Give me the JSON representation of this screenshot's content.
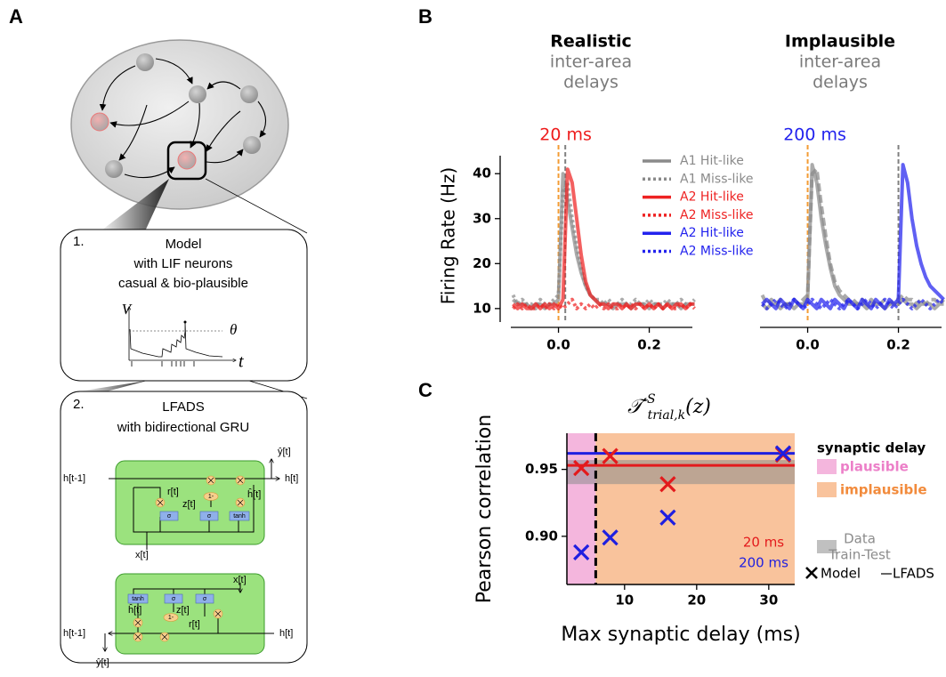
{
  "panel_a": {
    "label": "A",
    "box1": {
      "number": "1.",
      "lines": [
        "Model",
        "with LIF neurons",
        "casual & bio-plausible"
      ],
      "plot": {
        "y_label": "V",
        "threshold": "θ",
        "x_label": "t"
      }
    },
    "box2": {
      "number": "2.",
      "lines": [
        "LFADS",
        "with bidirectional GRU"
      ],
      "gru_forward": {
        "output": "ŷ[t]",
        "h_prev": "h[t-1]",
        "h_next": "h[t]",
        "reset": "r[t]",
        "update": "z[t]",
        "candidate": "ĥ[t]",
        "input": "x[t]",
        "gates": [
          "σ",
          "σ",
          "tanh"
        ],
        "one_minus": "1-"
      },
      "gru_backward": {
        "output": "ŷ[t]",
        "h_prev": "h[t-1]",
        "h_next": "h[t]",
        "reset": "r[t]",
        "update": "z[t]",
        "candidate": "ĥ[t]",
        "input": "x[t]",
        "gates": [
          "tanh",
          "σ",
          "σ"
        ],
        "one_minus": "1-"
      }
    }
  },
  "panel_b": {
    "label": "B"
  },
  "panel_c": {
    "label": "C"
  },
  "chart_data": [
    {
      "type": "line",
      "title": "Realistic",
      "subtitle_lines": [
        "inter-area",
        "delays"
      ],
      "annotation": {
        "text": "20 ms",
        "color": "#ee1c1c"
      },
      "y_label": "Firing Rate (Hz)",
      "x": [
        -0.1,
        -0.09,
        -0.08,
        -0.07,
        -0.06,
        -0.05,
        -0.04,
        -0.03,
        -0.02,
        -0.01,
        0,
        0.01,
        0.02,
        0.03,
        0.04,
        0.05,
        0.06,
        0.07,
        0.08,
        0.09,
        0.1,
        0.11,
        0.12,
        0.13,
        0.14,
        0.15,
        0.16,
        0.17,
        0.18,
        0.19,
        0.2,
        0.21,
        0.22,
        0.23,
        0.24,
        0.25,
        0.26,
        0.27,
        0.28,
        0.29,
        0.3
      ],
      "xlim": [
        -0.105,
        0.295
      ],
      "ylim": [
        7,
        44
      ],
      "xticks": [
        {
          "value": 0,
          "label": "0.0"
        },
        0.2
      ],
      "yticks": [
        10,
        20,
        30,
        40
      ],
      "vlines": [
        {
          "x": 0,
          "color": "#f39c34"
        },
        {
          "x": 0.015,
          "color": "#808080"
        }
      ],
      "legend": "upper right",
      "series": [
        {
          "name": "A1 Hit-like",
          "color": "#8a8a8a",
          "style": "solid",
          "values": [
            12,
            11,
            11,
            11,
            10,
            11,
            11,
            10,
            11,
            11,
            12,
            40,
            34,
            28,
            22,
            18,
            15,
            13,
            12,
            11,
            11,
            11,
            10,
            11,
            11,
            11,
            10,
            11,
            11,
            11,
            10,
            11,
            11,
            10,
            11,
            11,
            11,
            10,
            11,
            11,
            11
          ]
        },
        {
          "name": "A1 Miss-like",
          "color": "#8a8a8a",
          "style": "dotted",
          "values": [
            13,
            11,
            12,
            11,
            11,
            10,
            12,
            11,
            11,
            12,
            13,
            36,
            38,
            30,
            24,
            19,
            15,
            13,
            12,
            12,
            11,
            12,
            11,
            11,
            12,
            11,
            11,
            12,
            11,
            11,
            12,
            11,
            11,
            11,
            12,
            11,
            11,
            12,
            11,
            11,
            12
          ]
        },
        {
          "name": "A2 Hit-like",
          "color": "#ee2222",
          "style": "solid",
          "values": [
            11,
            10,
            11,
            10,
            10,
            11,
            10,
            11,
            10,
            11,
            10,
            12,
            41,
            38,
            30,
            22,
            16,
            13,
            12,
            11,
            11,
            10,
            11,
            11,
            10,
            11,
            10,
            11,
            11,
            10,
            11,
            10,
            11,
            10,
            11,
            10,
            11,
            11,
            10,
            11,
            11
          ]
        },
        {
          "name": "A2 Miss-like",
          "color": "#ee2222",
          "style": "dotted",
          "values": [
            10,
            11,
            10,
            11,
            10,
            10,
            11,
            10,
            11,
            10,
            11,
            10,
            11,
            12,
            10,
            11,
            10,
            11,
            10,
            11,
            10,
            11,
            10,
            10,
            11,
            10,
            11,
            10,
            11,
            10,
            11,
            10,
            11,
            10,
            11,
            10,
            10,
            11,
            10,
            11,
            10
          ]
        }
      ]
    },
    {
      "type": "line",
      "title": "Implausible",
      "subtitle_lines": [
        "inter-area",
        "delays"
      ],
      "annotation": {
        "text": "200 ms",
        "color": "#2222ee"
      },
      "x": [
        -0.1,
        -0.09,
        -0.08,
        -0.07,
        -0.06,
        -0.05,
        -0.04,
        -0.03,
        -0.02,
        -0.01,
        0,
        0.01,
        0.02,
        0.03,
        0.04,
        0.05,
        0.06,
        0.07,
        0.08,
        0.09,
        0.1,
        0.11,
        0.12,
        0.13,
        0.14,
        0.15,
        0.16,
        0.17,
        0.18,
        0.19,
        0.2,
        0.21,
        0.22,
        0.23,
        0.24,
        0.25,
        0.26,
        0.27,
        0.28,
        0.29,
        0.3
      ],
      "xlim": [
        -0.105,
        0.295
      ],
      "ylim": [
        7,
        44
      ],
      "xticks": [
        {
          "value": 0,
          "label": "0.0"
        },
        0.2
      ],
      "vlines": [
        {
          "x": 0,
          "color": "#f39c34"
        },
        {
          "x": 0.2,
          "color": "#808080"
        }
      ],
      "series": [
        {
          "color": "#8a8a8a",
          "style": "solid",
          "values": [
            11,
            10,
            11,
            11,
            10,
            11,
            11,
            10,
            11,
            11,
            12,
            42,
            38,
            30,
            24,
            19,
            15,
            13,
            12,
            11,
            11,
            11,
            11,
            10,
            11,
            11,
            11,
            10,
            11,
            11,
            11,
            12,
            11,
            11,
            10,
            11,
            11,
            11,
            10,
            11,
            11
          ]
        },
        {
          "color": "#8a8a8a",
          "style": "dashed",
          "values": [
            13,
            11,
            12,
            11,
            12,
            11,
            11,
            12,
            11,
            12,
            13,
            40,
            41,
            33,
            26,
            20,
            16,
            14,
            13,
            12,
            12,
            11,
            12,
            11,
            12,
            11,
            11,
            12,
            11,
            12,
            12,
            13,
            12,
            12,
            11,
            12,
            11,
            12,
            12,
            11,
            12
          ]
        },
        {
          "name": "A2 Hit-like",
          "color": "#2222ee",
          "style": "solid",
          "values": [
            11,
            12,
            11,
            10,
            12,
            11,
            10,
            12,
            11,
            10,
            12,
            11,
            10,
            12,
            11,
            10,
            12,
            11,
            10,
            12,
            11,
            10,
            12,
            11,
            10,
            12,
            11,
            10,
            12,
            11,
            12,
            42,
            38,
            30,
            24,
            20,
            17,
            15,
            14,
            13,
            12
          ]
        },
        {
          "name": "A2 Miss-like",
          "color": "#2222ee",
          "style": "dotted",
          "values": [
            11,
            10,
            11,
            12,
            11,
            10,
            11,
            12,
            11,
            10,
            11,
            12,
            11,
            10,
            11,
            12,
            11,
            10,
            11,
            12,
            11,
            10,
            11,
            12,
            11,
            10,
            11,
            12,
            11,
            10,
            11,
            12,
            11,
            10,
            11,
            12,
            11,
            10,
            11,
            12,
            11
          ]
        }
      ]
    },
    {
      "type": "scatter",
      "title": {
        "base": "𝒯′",
        "sup": "S",
        "sub": "trial,k",
        "arg": "(z)"
      },
      "x_label": "Max synaptic delay (ms)",
      "y_label": "Pearson correlation",
      "xlim": [
        2,
        33.6
      ],
      "ylim": [
        0.864,
        0.977
      ],
      "xticks": [
        10,
        20,
        30
      ],
      "yticks": [
        {
          "value": 0.9,
          "label": "0.90"
        },
        0.95
      ],
      "legend_title": "synaptic delay",
      "regions": [
        {
          "name": "plausible",
          "color": "#f4b6dd",
          "text_color": "#ec7fc8",
          "x": [
            2,
            6
          ]
        },
        {
          "name": "implausible",
          "color": "#f9c39c",
          "text_color": "#f28b3c",
          "x": [
            6,
            33.6
          ]
        }
      ],
      "threshold_x": 6,
      "band": {
        "name_lines": [
          "Data",
          "Train-Test"
        ],
        "range": [
          0.939,
          0.957
        ],
        "color": "#8c8c8c"
      },
      "marker_name": "Model",
      "line_name": "LFADS",
      "series": [
        {
          "name": "20 ms",
          "color": "#e31a1c",
          "x": [
            4,
            8,
            16,
            32
          ],
          "values": [
            0.951,
            0.96,
            0.939,
            0.961
          ],
          "lfads": 0.953
        },
        {
          "name": "200 ms",
          "color": "#1f1fe0",
          "x": [
            4,
            8,
            16,
            32
          ],
          "values": [
            0.888,
            0.899,
            0.914,
            0.962
          ],
          "lfads": 0.962
        }
      ]
    }
  ]
}
